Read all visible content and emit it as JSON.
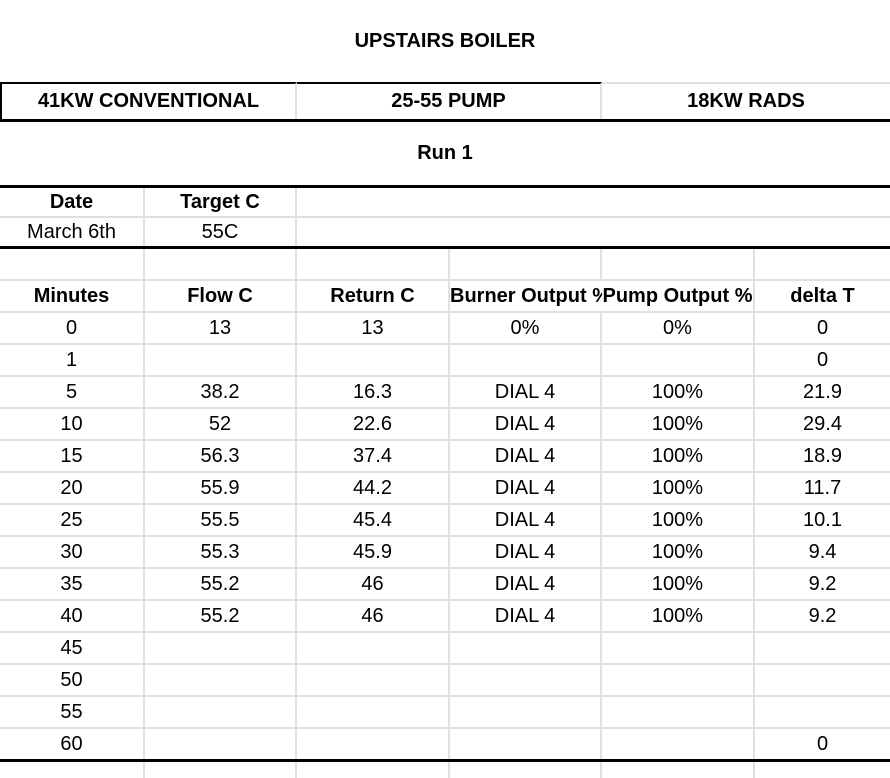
{
  "title": "UPSTAIRS BOILER",
  "spec_banner": {
    "boiler": "41KW CONVENTIONAL",
    "pump": "25-55 PUMP",
    "rads": "18KW RADS"
  },
  "run_label": "Run 1",
  "run_info": {
    "date_label": "Date",
    "target_label": "Target C",
    "date_value": "March 6th",
    "target_value": "55C"
  },
  "table": {
    "columns": [
      "Minutes",
      "Flow C",
      "Return C",
      "Burner Output %",
      "Pump Output %",
      "delta T"
    ],
    "rows": [
      [
        "0",
        "13",
        "13",
        "0%",
        "0%",
        "0"
      ],
      [
        "1",
        "",
        "",
        "",
        "",
        "0"
      ],
      [
        "5",
        "38.2",
        "16.3",
        "DIAL 4",
        "100%",
        "21.9"
      ],
      [
        "10",
        "52",
        "22.6",
        "DIAL 4",
        "100%",
        "29.4"
      ],
      [
        "15",
        "56.3",
        "37.4",
        "DIAL 4",
        "100%",
        "18.9"
      ],
      [
        "20",
        "55.9",
        "44.2",
        "DIAL 4",
        "100%",
        "11.7"
      ],
      [
        "25",
        "55.5",
        "45.4",
        "DIAL 4",
        "100%",
        "10.1"
      ],
      [
        "30",
        "55.3",
        "45.9",
        "DIAL 4",
        "100%",
        "9.4"
      ],
      [
        "35",
        "55.2",
        "46",
        "DIAL 4",
        "100%",
        "9.2"
      ],
      [
        "40",
        "55.2",
        "46",
        "DIAL 4",
        "100%",
        "9.2"
      ],
      [
        "45",
        "",
        "",
        "",
        "",
        ""
      ],
      [
        "50",
        "",
        "",
        "",
        "",
        ""
      ],
      [
        "55",
        "",
        "",
        "",
        "",
        ""
      ],
      [
        "60",
        "",
        "",
        "",
        "",
        "0"
      ]
    ]
  },
  "colors": {
    "background": "#ffffff",
    "text": "#000000",
    "grid_line": "#e0e0e0",
    "section_border": "#000000"
  }
}
